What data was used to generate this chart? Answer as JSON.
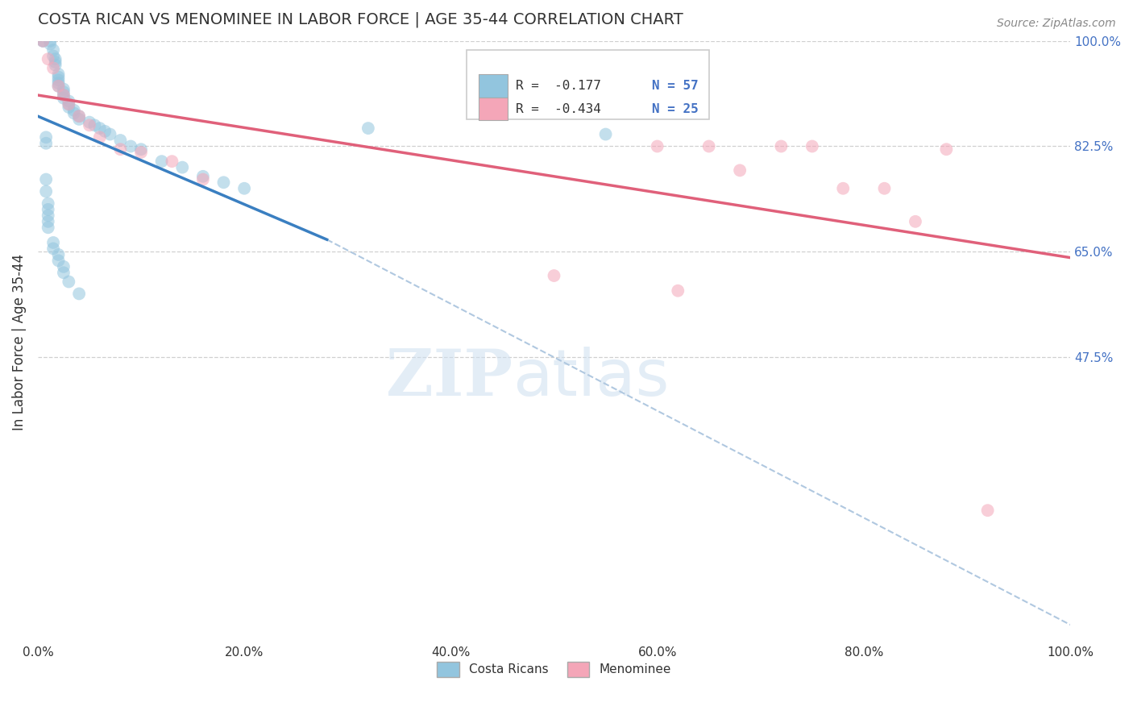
{
  "title": "COSTA RICAN VS MENOMINEE IN LABOR FORCE | AGE 35-44 CORRELATION CHART",
  "source": "Source: ZipAtlas.com",
  "ylabel": "In Labor Force | Age 35-44",
  "xlim": [
    0.0,
    1.0
  ],
  "ylim": [
    0.0,
    1.0
  ],
  "right_yticks": [
    0.475,
    0.65,
    0.825,
    1.0
  ],
  "right_ytick_labels": [
    "47.5%",
    "65.0%",
    "82.5%",
    "100.0%"
  ],
  "xtick_positions": [
    0.0,
    0.2,
    0.4,
    0.6,
    0.8,
    1.0
  ],
  "xtick_labels": [
    "0.0%",
    "20.0%",
    "40.0%",
    "60.0%",
    "80.0%",
    "100.0%"
  ],
  "blue_color": "#92c5de",
  "pink_color": "#f4a6b8",
  "blue_line_color": "#3a7fc1",
  "pink_line_color": "#e0607a",
  "legend_R_blue": "R =  -0.177",
  "legend_N_blue": "N = 57",
  "legend_R_pink": "R =  -0.434",
  "legend_N_pink": "N = 25",
  "legend_label_blue": "Costa Ricans",
  "legend_label_pink": "Menominee",
  "watermark_zip": "ZIP",
  "watermark_atlas": "atlas",
  "blue_scatter_x": [
    0.005,
    0.005,
    0.012,
    0.012,
    0.015,
    0.015,
    0.017,
    0.017,
    0.017,
    0.02,
    0.02,
    0.02,
    0.02,
    0.02,
    0.025,
    0.025,
    0.025,
    0.025,
    0.03,
    0.03,
    0.03,
    0.035,
    0.035,
    0.04,
    0.04,
    0.05,
    0.055,
    0.06,
    0.065,
    0.07,
    0.08,
    0.09,
    0.1,
    0.12,
    0.14,
    0.16,
    0.18,
    0.2,
    0.008,
    0.008,
    0.008,
    0.008,
    0.01,
    0.01,
    0.01,
    0.01,
    0.01,
    0.015,
    0.015,
    0.02,
    0.02,
    0.025,
    0.025,
    0.03,
    0.04,
    0.32,
    0.55
  ],
  "blue_scatter_y": [
    1.0,
    1.0,
    1.0,
    0.995,
    0.985,
    0.975,
    0.97,
    0.965,
    0.96,
    0.945,
    0.94,
    0.935,
    0.93,
    0.925,
    0.92,
    0.915,
    0.91,
    0.905,
    0.9,
    0.895,
    0.89,
    0.885,
    0.88,
    0.875,
    0.87,
    0.865,
    0.86,
    0.855,
    0.85,
    0.845,
    0.835,
    0.825,
    0.82,
    0.8,
    0.79,
    0.775,
    0.765,
    0.755,
    0.84,
    0.83,
    0.77,
    0.75,
    0.73,
    0.72,
    0.71,
    0.7,
    0.69,
    0.665,
    0.655,
    0.645,
    0.635,
    0.625,
    0.615,
    0.6,
    0.58,
    0.855,
    0.845
  ],
  "pink_scatter_x": [
    0.005,
    0.01,
    0.015,
    0.02,
    0.025,
    0.03,
    0.04,
    0.05,
    0.06,
    0.08,
    0.1,
    0.13,
    0.16,
    0.6,
    0.65,
    0.68,
    0.72,
    0.75,
    0.78,
    0.82,
    0.85,
    0.88,
    0.5,
    0.62,
    0.92
  ],
  "pink_scatter_y": [
    1.0,
    0.97,
    0.955,
    0.925,
    0.91,
    0.895,
    0.875,
    0.86,
    0.84,
    0.82,
    0.815,
    0.8,
    0.77,
    0.825,
    0.825,
    0.785,
    0.825,
    0.825,
    0.755,
    0.755,
    0.7,
    0.82,
    0.61,
    0.585,
    0.22
  ],
  "blue_trend": [
    0.0,
    0.875,
    0.28,
    0.67
  ],
  "pink_trend": [
    0.0,
    0.91,
    1.0,
    0.64
  ],
  "dashed_line": [
    0.28,
    0.67,
    1.0,
    0.03
  ],
  "grid_yticks": [
    0.475,
    0.65,
    0.825,
    1.0
  ],
  "background_color": "#ffffff",
  "grid_color": "#d0d0d0",
  "title_color": "#333333",
  "right_axis_color": "#4472c4",
  "source_color": "#888888"
}
